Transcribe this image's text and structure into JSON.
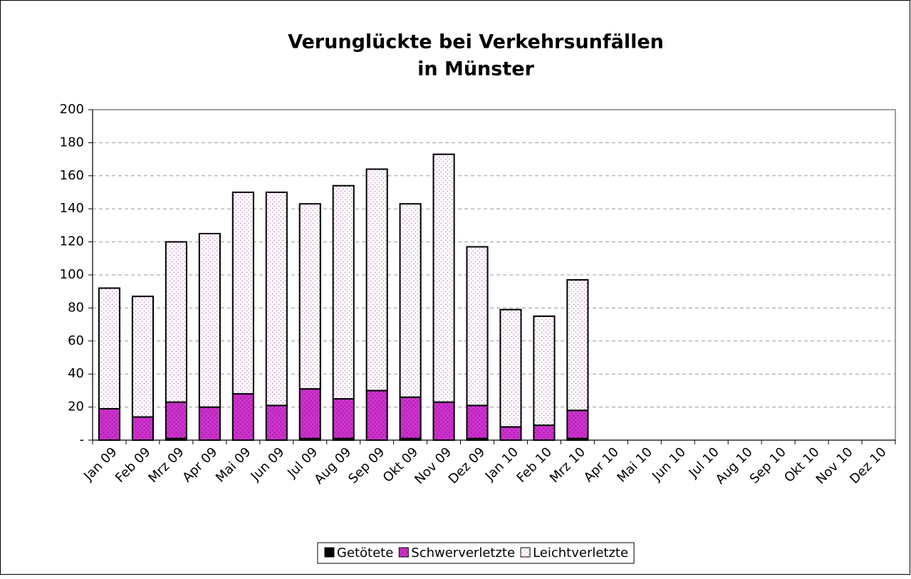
{
  "chart_data": {
    "type": "stacked_bar",
    "title": [
      "Verunglückte bei Verkehrsunfällen",
      "in Münster"
    ],
    "categories": [
      "Jan 09",
      "Feb 09",
      "Mrz 09",
      "Apr 09",
      "Mai 09",
      "Jun 09",
      "Jul 09",
      "Aug 09",
      "Sep 09",
      "Okt 09",
      "Nov 09",
      "Dez 09",
      "Jan 10",
      "Feb 10",
      "Mrz 10",
      "Apr 10",
      "Mai 10",
      "Jun 10",
      "Jul 10",
      "Aug 10",
      "Sep 10",
      "Okt 10",
      "Nov 10",
      "Dez 10"
    ],
    "series": [
      {
        "name": "Getötete",
        "color": "#000000",
        "values": [
          0,
          0,
          1,
          0,
          0,
          0,
          1,
          1,
          0,
          1,
          0,
          1,
          0,
          0,
          1,
          null,
          null,
          null,
          null,
          null,
          null,
          null,
          null,
          null
        ]
      },
      {
        "name": "Schwerverletzte",
        "color": "#cc33cc",
        "values": [
          19,
          14,
          22,
          20,
          28,
          21,
          30,
          24,
          30,
          25,
          23,
          20,
          8,
          9,
          17,
          null,
          null,
          null,
          null,
          null,
          null,
          null,
          null,
          null
        ]
      },
      {
        "name": "Leichtverletzte",
        "color": "#ffffff",
        "values": [
          73,
          73,
          97,
          105,
          122,
          129,
          112,
          129,
          134,
          117,
          150,
          96,
          71,
          66,
          79,
          null,
          null,
          null,
          null,
          null,
          null,
          null,
          null,
          null
        ]
      }
    ],
    "ylim": [
      0,
      200
    ],
    "yticks": [
      {
        "value": 0,
        "label": "-"
      },
      20,
      40,
      60,
      80,
      100,
      120,
      140,
      160,
      180,
      200
    ],
    "grid": true,
    "legend": "bottom"
  }
}
